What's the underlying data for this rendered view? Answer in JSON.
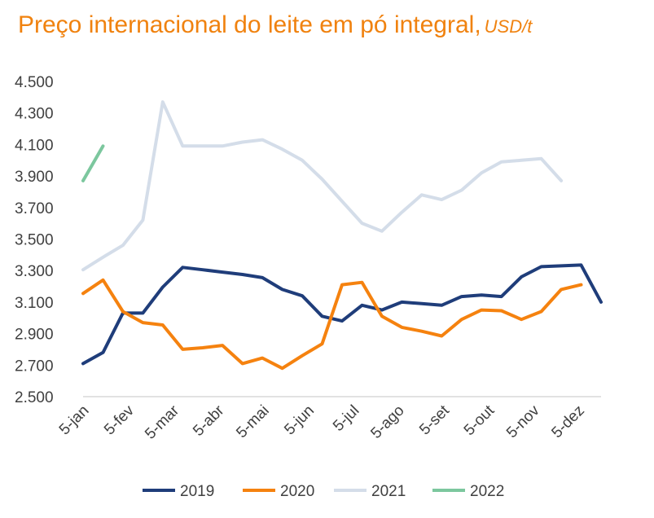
{
  "chart_data": {
    "type": "line",
    "title": "Preço internacional do leite em pó integral,",
    "title_unit": "USD/t",
    "xlabel": "",
    "ylabel": "",
    "ylim": [
      2500,
      4500
    ],
    "y_ticks": [
      "4.500",
      "4.300",
      "4.100",
      "3.900",
      "3.700",
      "3.500",
      "3.300",
      "3.100",
      "2.900",
      "2.700",
      "2.500"
    ],
    "y_tick_values": [
      4500,
      4300,
      4100,
      3900,
      3700,
      3500,
      3300,
      3100,
      2900,
      2700,
      2500
    ],
    "x_tick_labels": [
      "5-jan",
      "5-fev",
      "5-mar",
      "5-abr",
      "5-mai",
      "5-jun",
      "5-jul",
      "5-ago",
      "5-set",
      "5-out",
      "5-nov",
      "5-dez"
    ],
    "grid": false,
    "legend_position": "bottom",
    "series": [
      {
        "name": "2019",
        "color": "#1f3d7a",
        "values": [
          2710,
          2780,
          3030,
          3030,
          3195,
          3320,
          3305,
          3290,
          3275,
          3255,
          3180,
          3140,
          3010,
          2980,
          3080,
          3050,
          3100,
          3090,
          3080,
          3135,
          3145,
          3135,
          3260,
          3325,
          3330,
          3335,
          3100
        ]
      },
      {
        "name": "2020",
        "color": "#f5820f",
        "values": [
          3155,
          3240,
          3040,
          2970,
          2955,
          2800,
          2810,
          2825,
          2710,
          2745,
          2680,
          2760,
          2835,
          3210,
          3225,
          3010,
          2940,
          2915,
          2885,
          2990,
          3050,
          3045,
          2990,
          3040,
          3180,
          3210
        ]
      },
      {
        "name": "2021",
        "color": "#d4dde9",
        "values": [
          3305,
          3385,
          3460,
          3620,
          4370,
          4090,
          4090,
          4090,
          4115,
          4130,
          4070,
          4000,
          3880,
          3740,
          3600,
          3550,
          3670,
          3780,
          3750,
          3810,
          3920,
          3990,
          4000,
          4010,
          3870
        ]
      },
      {
        "name": "2022",
        "color": "#7cc79e",
        "values": [
          3870,
          4090
        ]
      }
    ]
  }
}
